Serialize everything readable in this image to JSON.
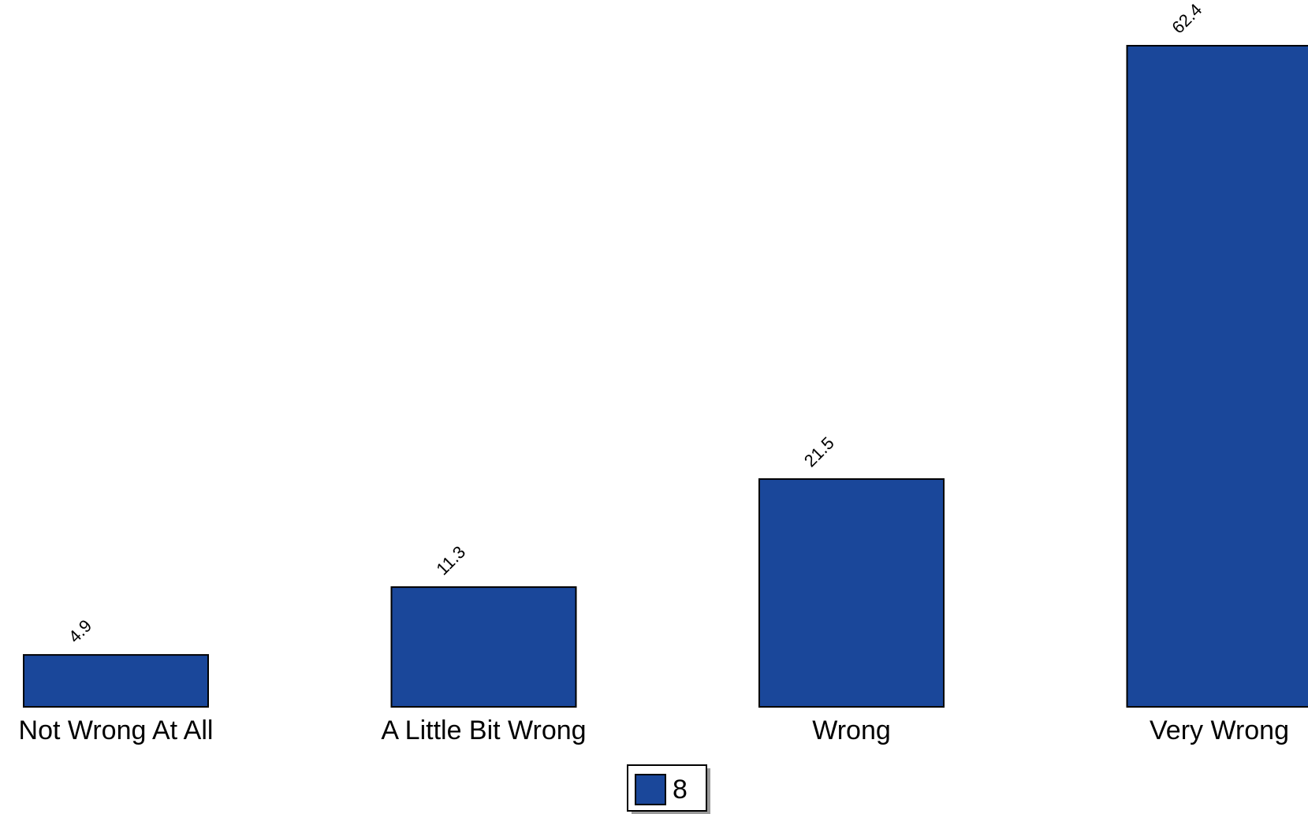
{
  "chart_data": {
    "type": "bar",
    "categories": [
      "Not Wrong At All",
      "A Little Bit Wrong",
      "Wrong",
      "Very Wrong"
    ],
    "series": [
      {
        "name": "8",
        "values": [
          4.9,
          11.3,
          21.5,
          62.4
        ],
        "color": "#1a479a"
      }
    ],
    "data_labels": [
      "4.9",
      "11.3",
      "21.5",
      "62.4"
    ],
    "ylim": [
      0,
      62.4
    ],
    "grid": false,
    "legend_position": "bottom-center"
  }
}
